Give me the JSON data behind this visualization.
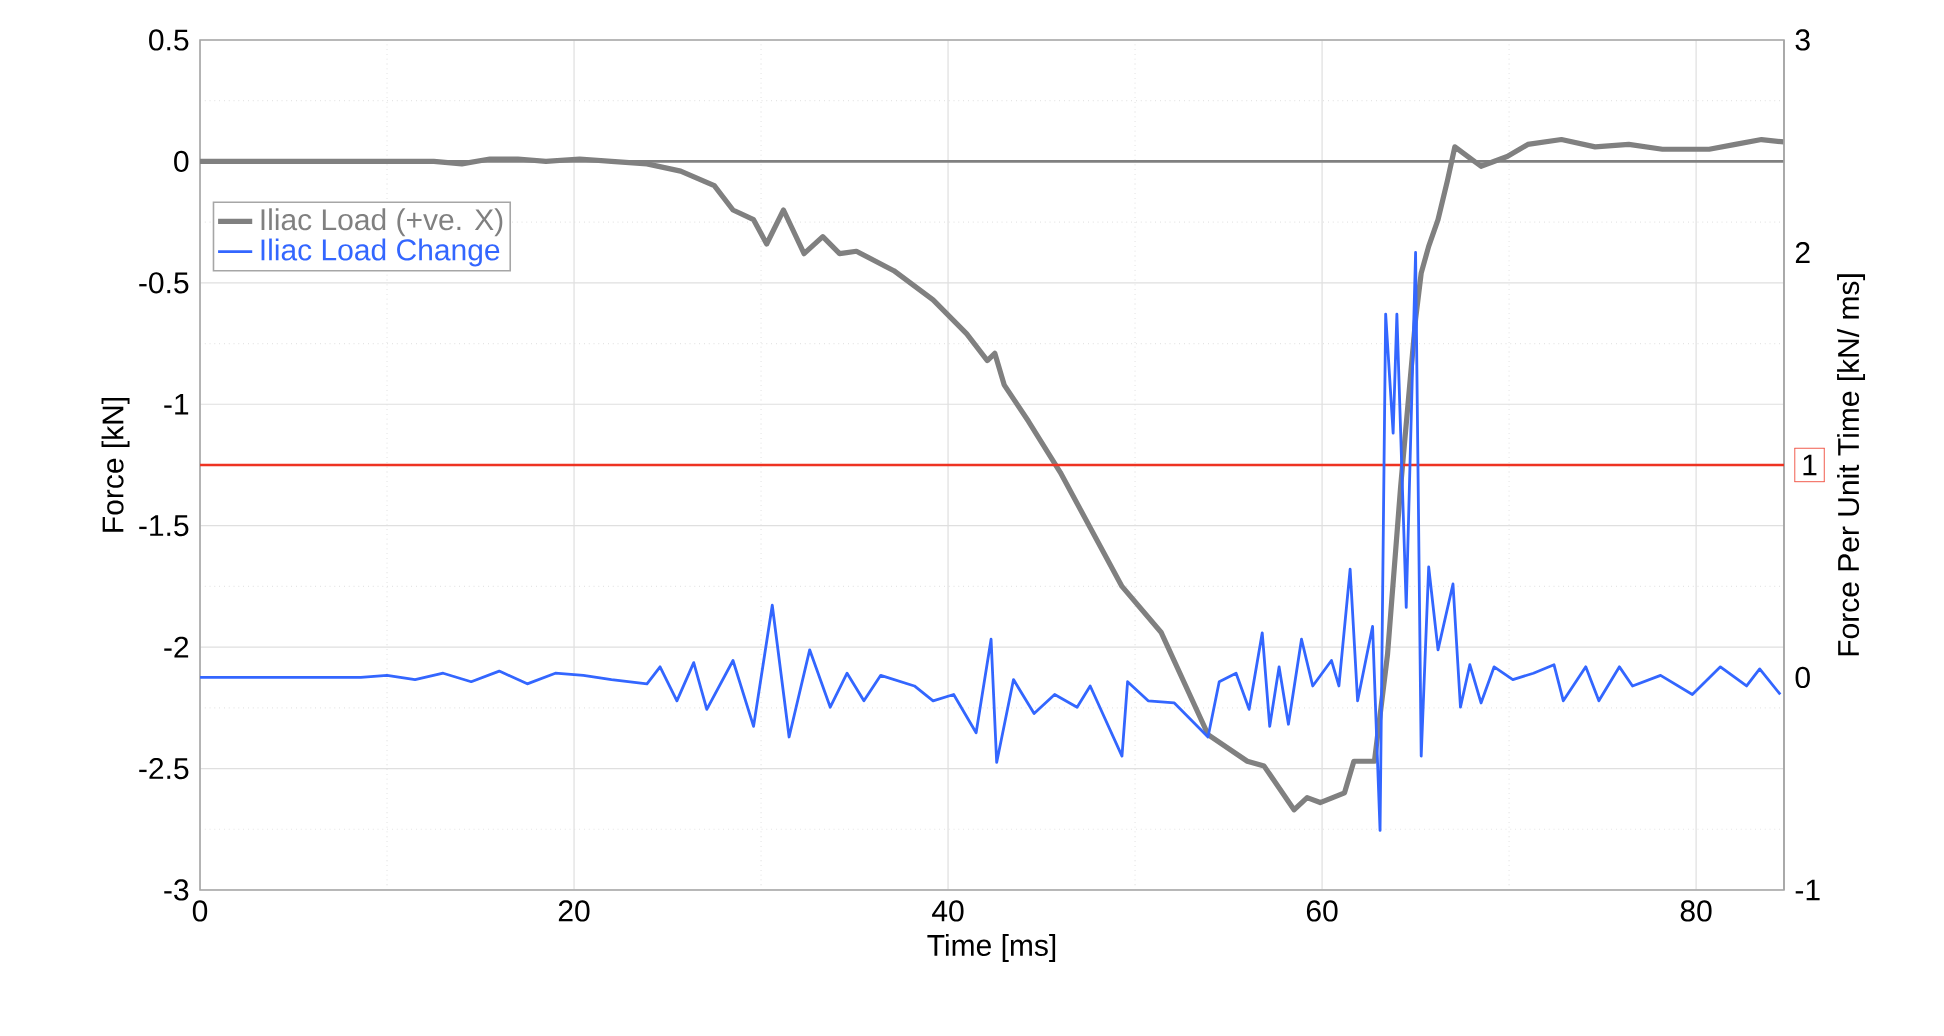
{
  "chart_data": {
    "type": "line",
    "xlabel": "Time [ms]",
    "ylabel": "Force [kN]",
    "y2label": "Force Per Unit Time [kN/ ms]",
    "xlim": [
      0,
      84.7
    ],
    "xticks": [
      0,
      20,
      40,
      60,
      80
    ],
    "ylim": [
      -3,
      0.5
    ],
    "yticks": [
      -3,
      -2.5,
      -2,
      -1.5,
      -1,
      -0.5,
      0,
      0.5
    ],
    "y2lim": [
      -1,
      3
    ],
    "y2ticks": [
      -1,
      0,
      1,
      2,
      3
    ],
    "grid": true,
    "legend": "top left",
    "line_style": "solid",
    "ref_lines": [
      {
        "axis": "y",
        "value": 0,
        "color": "#808080"
      },
      {
        "axis": "y2",
        "value": 1,
        "color": "#ee3322"
      }
    ],
    "series": [
      {
        "name": "Iliac Load (+ve. X)",
        "color": "#808080",
        "x": [
          0,
          12.5,
          14,
          15.5,
          17,
          18.5,
          20.3,
          22,
          23.9,
          25.7,
          27.5,
          28.5,
          29.6,
          30.3,
          31.2,
          32.3,
          33.3,
          34.2,
          35.1,
          37.1,
          39.2,
          41.0,
          42.1,
          42.5,
          43.0,
          44.3,
          46.0,
          49.3,
          51.4,
          53.9,
          56.0,
          56.9,
          58.5,
          59.2,
          59.9,
          61.2,
          61.7,
          62.8,
          63.5,
          64.2,
          65.0,
          65.3,
          65.7,
          66.2,
          66.7,
          67.1,
          67.8,
          68.5,
          69.9,
          71.0,
          72.8,
          74.6,
          76.4,
          78.2,
          80.7,
          82.1,
          83.5,
          84.7
        ],
        "values": [
          0,
          0,
          -0.01,
          0.01,
          0.01,
          0,
          0.01,
          0,
          -0.01,
          -0.04,
          -0.1,
          -0.2,
          -0.24,
          -0.34,
          -0.2,
          -0.38,
          -0.31,
          -0.38,
          -0.37,
          -0.45,
          -0.57,
          -0.71,
          -0.82,
          -0.79,
          -0.92,
          -1.07,
          -1.28,
          -1.75,
          -1.94,
          -2.36,
          -2.47,
          -2.49,
          -2.67,
          -2.62,
          -2.64,
          -2.6,
          -2.47,
          -2.47,
          -2.03,
          -1.34,
          -0.65,
          -0.46,
          -0.35,
          -0.24,
          -0.08,
          0.06,
          0.02,
          -0.02,
          0.02,
          0.07,
          0.09,
          0.06,
          0.07,
          0.05,
          0.05,
          0.07,
          0.09,
          0.08
        ]
      },
      {
        "name": "Iliac Load Change",
        "color": "#3366ff",
        "axis": "y2",
        "x": [
          0,
          8.6,
          10,
          11.5,
          13,
          14.5,
          16,
          17.5,
          19,
          20.5,
          22,
          23.9,
          24.6,
          25.5,
          26.4,
          27.1,
          28.5,
          29.6,
          30.6,
          31.5,
          32.6,
          33.7,
          34.6,
          35.5,
          36.4,
          38.2,
          39.2,
          40.3,
          41.5,
          42.3,
          42.6,
          43.5,
          44.6,
          45.7,
          46.9,
          47.6,
          49.3,
          49.6,
          50.7,
          52.1,
          53.9,
          54.5,
          55.4,
          56.1,
          56.8,
          57.2,
          57.7,
          58.2,
          58.9,
          59.5,
          60.5,
          60.9,
          61.5,
          61.9,
          62.7,
          63.1,
          63.4,
          63.8,
          64.0,
          64.5,
          65.0,
          65.3,
          65.7,
          66.2,
          67.0,
          67.4,
          67.9,
          68.5,
          69.2,
          70.2,
          71.3,
          72.4,
          72.9,
          74.1,
          74.8,
          75.9,
          76.6,
          78.1,
          79.8,
          81.3,
          82.7,
          83.4,
          84.5
        ],
        "values": [
          0,
          0,
          0.01,
          -0.01,
          0.02,
          -0.02,
          0.03,
          -0.03,
          0.02,
          0.01,
          -0.01,
          -0.03,
          0.05,
          -0.11,
          0.07,
          -0.15,
          0.08,
          -0.23,
          0.34,
          -0.28,
          0.13,
          -0.14,
          0.02,
          -0.11,
          0.01,
          -0.04,
          -0.11,
          -0.08,
          -0.26,
          0.18,
          -0.4,
          -0.01,
          -0.17,
          -0.08,
          -0.14,
          -0.04,
          -0.37,
          -0.02,
          -0.11,
          -0.12,
          -0.28,
          -0.02,
          0.02,
          -0.15,
          0.21,
          -0.23,
          0.05,
          -0.22,
          0.18,
          -0.04,
          0.08,
          -0.04,
          0.51,
          -0.11,
          0.24,
          -0.72,
          1.71,
          1.15,
          1.71,
          0.33,
          2.0,
          -0.37,
          0.52,
          0.13,
          0.44,
          -0.14,
          0.06,
          -0.12,
          0.05,
          -0.01,
          0.02,
          0.06,
          -0.11,
          0.05,
          -0.11,
          0.05,
          -0.04,
          0.01,
          -0.08,
          0.05,
          -0.04,
          0.04,
          -0.08
        ]
      }
    ]
  }
}
